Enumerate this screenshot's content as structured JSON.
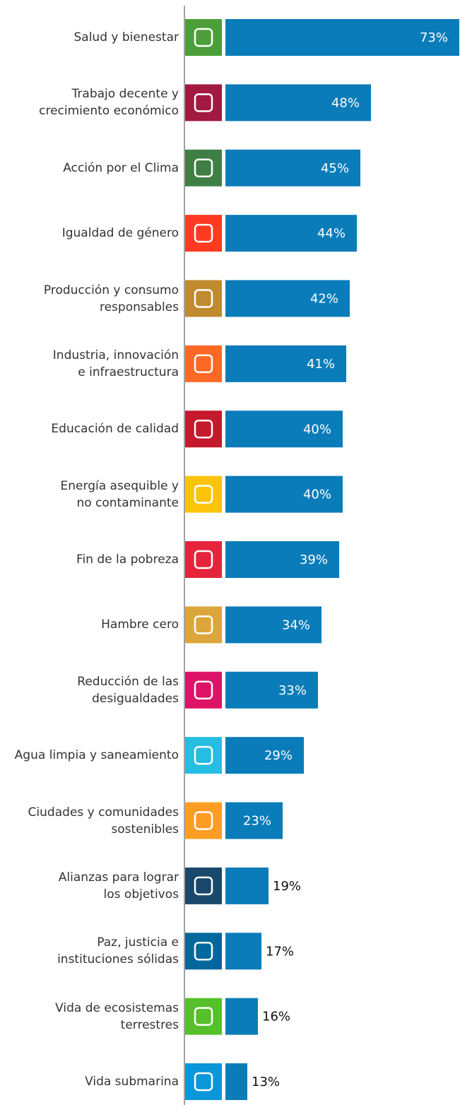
{
  "chart_data": {
    "type": "bar",
    "orientation": "horizontal",
    "categories": [
      "Salud y bienestar",
      "Trabajo decente y\ncrecimiento económico",
      "Acción por el Clima",
      "Igualdad de género",
      "Producción y consumo\nresponsables",
      "Industria, innovación\ne infraestructura",
      "Educación de calidad",
      "Energía asequible y\nno contaminante",
      "Fin de la pobreza",
      "Hambre cero",
      "Reducción de las\ndesigualdades",
      "Agua limpia y saneamiento",
      "Ciudades y comunidades\nsostenibles",
      "Alianzas para lograr\nlos objetivos",
      "Paz, justicia e\ninstituciones sólidas",
      "Vida de ecosistemas\nterrestres",
      "Vida submarina"
    ],
    "values": [
      73,
      48,
      45,
      44,
      42,
      41,
      40,
      40,
      39,
      34,
      33,
      29,
      23,
      19,
      17,
      16,
      13
    ],
    "value_labels": [
      "73%",
      "48%",
      "45%",
      "44%",
      "42%",
      "41%",
      "40%",
      "40%",
      "39%",
      "34%",
      "33%",
      "29%",
      "23%",
      "19%",
      "17%",
      "16%",
      "13%"
    ],
    "color": "#0a7cb9",
    "icon_colors": [
      "#4c9f38",
      "#a21942",
      "#3f7e44",
      "#ff3a21",
      "#bf8b2e",
      "#fd6925",
      "#c5192d",
      "#fcc30b",
      "#e5243b",
      "#dda63a",
      "#dd1367",
      "#26bde2",
      "#fd9d24",
      "#19486a",
      "#00689d",
      "#56c02b",
      "#0a97d9"
    ],
    "xlim": [
      0,
      73
    ]
  }
}
